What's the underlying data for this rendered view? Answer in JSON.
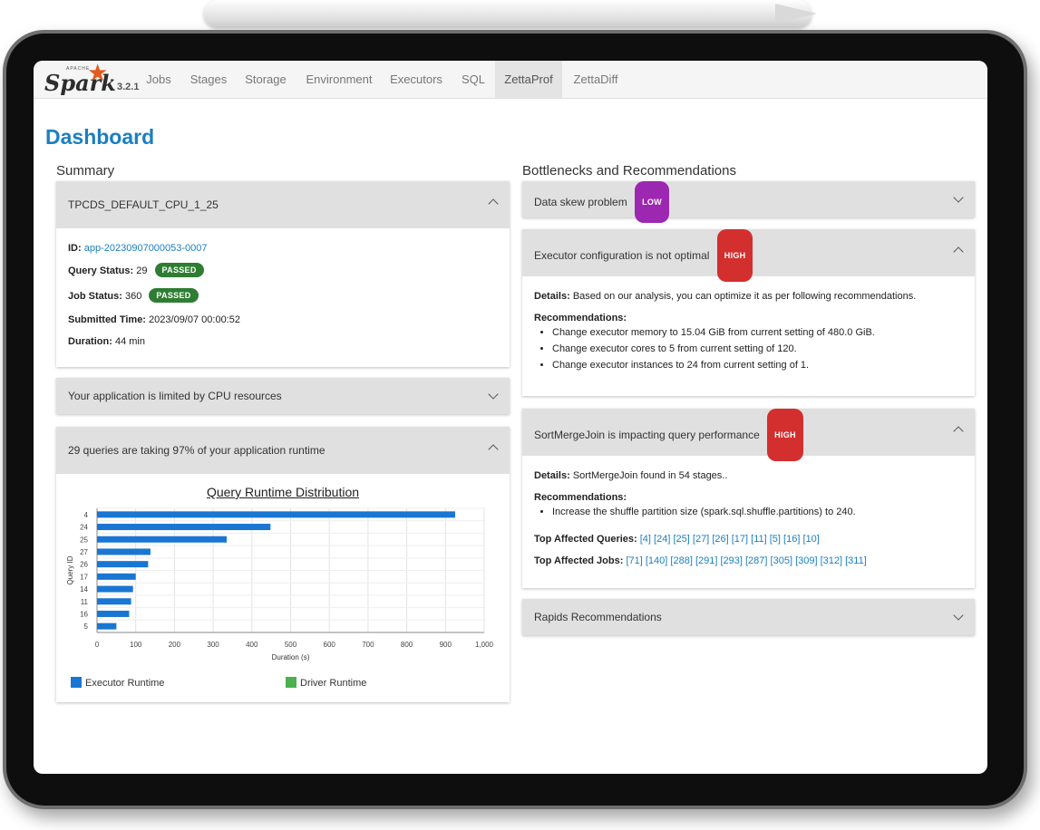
{
  "nav": {
    "logo_text": "Spark",
    "logo_apache": "APACHE",
    "version": "3.2.1",
    "tabs": [
      "Jobs",
      "Stages",
      "Storage",
      "Environment",
      "Executors",
      "SQL",
      "ZettaProf",
      "ZettaDiff"
    ],
    "active_tab": "ZettaProf"
  },
  "page_title": "Dashboard",
  "summary": {
    "heading": "Summary",
    "app_panel": {
      "title": "TPCDS_DEFAULT_CPU_1_25",
      "id_label": "ID:",
      "id_value": "app-20230907000053-0007",
      "query_status_label": "Query Status:",
      "query_status_value": "29",
      "query_status_badge": "PASSED",
      "job_status_label": "Job Status:",
      "job_status_value": "360",
      "job_status_badge": "PASSED",
      "submitted_label": "Submitted Time:",
      "submitted_value": "2023/09/07 00:00:52",
      "duration_label": "Duration:",
      "duration_value": "44 min"
    },
    "cpu_panel": {
      "title": "Your application is limited by CPU resources"
    },
    "runtime_panel": {
      "title": "29 queries are taking 97% of your application runtime"
    }
  },
  "bottlenecks": {
    "heading": "Bottlenecks and Recommendations",
    "skew": {
      "title": "Data skew problem",
      "badge": "LOW"
    },
    "executor": {
      "title": "Executor configuration is not optimal",
      "badge": "HIGH",
      "details_label": "Details:",
      "details_text": "Based on our analysis, you can optimize it as per following recommendations.",
      "recs_label": "Recommendations:",
      "recs": [
        "Change executor memory to 15.04 GiB from current setting of 480.0 GiB.",
        "Change executor cores to 5 from current setting of 120.",
        "Change executor instances to 24 from current setting of 1."
      ]
    },
    "smj": {
      "title": "SortMergeJoin is impacting query performance",
      "badge": "HIGH",
      "details_label": "Details:",
      "details_text": "SortMergeJoin found in 54 stages..",
      "recs_label": "Recommendations:",
      "recs": [
        "Increase the shuffle partition size (spark.sql.shuffle.partitions) to 240."
      ],
      "queries_label": "Top Affected Queries:",
      "queries": [
        "[4]",
        "[24]",
        "[25]",
        "[27]",
        "[26]",
        "[17]",
        "[11]",
        "[5]",
        "[16]",
        "[10]"
      ],
      "jobs_label": "Top Affected Jobs:",
      "jobs": [
        "[71]",
        "[140]",
        "[288]",
        "[291]",
        "[293]",
        "[287]",
        "[305]",
        "[309]",
        "[312]",
        "[311]"
      ]
    },
    "rapids": {
      "title": "Rapids Recommendations"
    }
  },
  "colors": {
    "accent": "#1b7fc1",
    "executor": "#1976d2",
    "driver": "#4caf50",
    "passed": "#2e7d32",
    "low": "#9c27b0",
    "high": "#d32f2f"
  },
  "chart_data": {
    "type": "bar",
    "orientation": "horizontal",
    "title": "Query Runtime Distribution",
    "xlabel": "Duration (s)",
    "ylabel": "Query ID",
    "categories": [
      "4",
      "24",
      "25",
      "27",
      "26",
      "17",
      "14",
      "11",
      "16",
      "5"
    ],
    "series": [
      {
        "name": "Executor Runtime",
        "values": [
          925,
          448,
          335,
          138,
          132,
          100,
          93,
          88,
          83,
          50
        ]
      },
      {
        "name": "Driver Runtime",
        "values": [
          0,
          0,
          0,
          0,
          0,
          0,
          0,
          0,
          0,
          0
        ]
      }
    ],
    "xlim": [
      0,
      1000
    ],
    "xticks": [
      "0",
      "100",
      "200",
      "300",
      "400",
      "500",
      "600",
      "700",
      "800",
      "900",
      "1,000"
    ],
    "grid": true,
    "legend": "bottom"
  }
}
